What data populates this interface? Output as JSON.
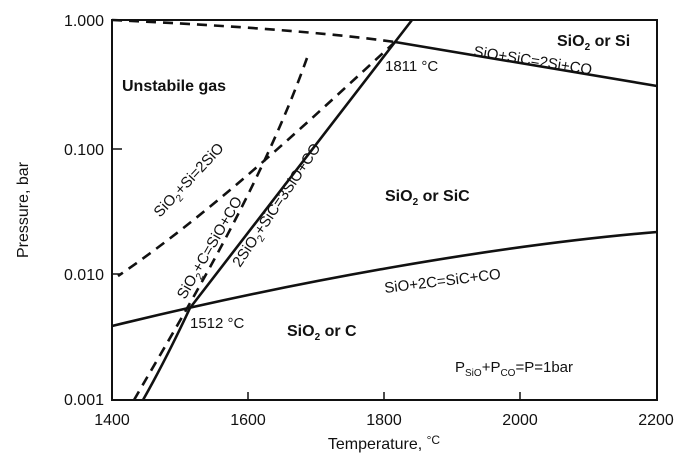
{
  "diagram": {
    "xlabel_main": "Temperature, ",
    "xlabel_unit": "°C",
    "ylabel": "Pressure, bar",
    "x_ticks": [
      "1400",
      "1600",
      "1800",
      "2000",
      "2200"
    ],
    "y_ticks": [
      "1.000",
      "0.100",
      "0.010",
      "0.001"
    ],
    "regions": {
      "unstable": "Unstabile gas",
      "sio2_si_a": "SiO",
      "sio2_si_sub": "2",
      "sio2_si_b": " or Si",
      "sio2_sic_a": "SiO",
      "sio2_sic_sub": "2",
      "sio2_sic_b": " or SiC",
      "sio2_c_a": "SiO",
      "sio2_c_sub": "2",
      "sio2_c_b": " or C"
    },
    "reactions": {
      "r1_a": "SiO",
      "r1_sub": "2",
      "r1_b": "+Si=2SiO",
      "r2_a": "SiO",
      "r2_sub": "2",
      "r2_b": "+C=SiO+CO",
      "r3_a": "2SiO",
      "r3_sub": "2",
      "r3_b": "+SiC=3SiO+CO",
      "r4": "SiO+SiC=2Si+CO",
      "r5": "SiO+2C=SiC+CO"
    },
    "points": {
      "p1": "1811 °C",
      "p2": "1512 °C"
    },
    "note": {
      "p1": "P",
      "s1": "SiO",
      "plus": "+P",
      "s2": "CO",
      "rest": "=P=1bar"
    }
  }
}
